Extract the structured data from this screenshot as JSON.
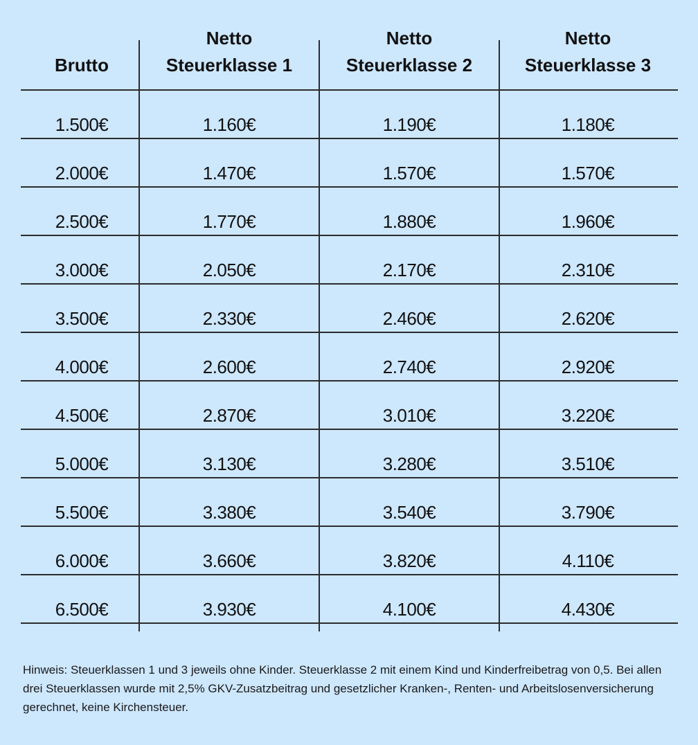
{
  "table": {
    "headers": [
      {
        "line1": "",
        "line2": "Brutto"
      },
      {
        "line1": "Netto",
        "line2": "Steuerklasse 1"
      },
      {
        "line1": "Netto",
        "line2": "Steuerklasse 2"
      },
      {
        "line1": "Netto",
        "line2": "Steuerklasse 3"
      }
    ],
    "rows": [
      [
        "1.500€",
        "1.160€",
        "1.190€",
        "1.180€"
      ],
      [
        "2.000€",
        "1.470€",
        "1.570€",
        "1.570€"
      ],
      [
        "2.500€",
        "1.770€",
        "1.880€",
        "1.960€"
      ],
      [
        "3.000€",
        "2.050€",
        "2.170€",
        "2.310€"
      ],
      [
        "3.500€",
        "2.330€",
        "2.460€",
        "2.620€"
      ],
      [
        "4.000€",
        "2.600€",
        "2.740€",
        "2.920€"
      ],
      [
        "4.500€",
        "2.870€",
        "3.010€",
        "3.220€"
      ],
      [
        "5.000€",
        "3.130€",
        "3.280€",
        "3.510€"
      ],
      [
        "5.500€",
        "3.380€",
        "3.540€",
        "3.790€"
      ],
      [
        "6.000€",
        "3.660€",
        "3.820€",
        "4.110€"
      ],
      [
        "6.500€",
        "3.930€",
        "4.100€",
        "4.430€"
      ]
    ]
  },
  "note": "Hinweis: Steuerklassen 1 und 3 jeweils ohne Kinder. Steuerklasse 2 mit einem Kind und Kinderfreibetrag von 0,5. Bei allen drei Steuerklassen wurde mit 2,5% GKV-Zusatzbeitrag und gesetzlicher Kranken-, Renten- und Arbeitslosenversicherung gerechnet, keine Kirchensteuer.",
  "colors": {
    "background": "#cde7fd",
    "lines": "#2b2b2b"
  }
}
